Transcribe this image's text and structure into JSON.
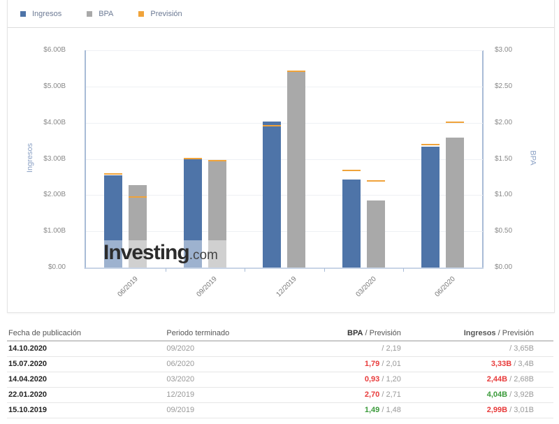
{
  "legend": {
    "items": [
      {
        "label": "Ingresos",
        "color": "#4e74a8"
      },
      {
        "label": "BPA",
        "color": "#a9a9a9"
      },
      {
        "label": "Previsión",
        "color": "#f0a33a"
      }
    ]
  },
  "chart_data": {
    "type": "bar",
    "title": "",
    "categories": [
      "06/2019",
      "09/2019",
      "12/2019",
      "03/2020",
      "06/2020"
    ],
    "series": [
      {
        "name": "Ingresos",
        "axis": "left",
        "unit": "B USD",
        "color": "#4e74a8",
        "values": [
          2.55,
          2.99,
          4.04,
          2.44,
          3.33
        ],
        "forecast": [
          2.58,
          3.01,
          3.92,
          2.68,
          3.4
        ]
      },
      {
        "name": "BPA",
        "axis": "right",
        "unit": "USD",
        "color": "#a9a9a9",
        "values": [
          1.14,
          1.49,
          2.7,
          0.93,
          1.79
        ],
        "forecast": [
          0.97,
          1.48,
          2.71,
          1.2,
          2.01
        ]
      }
    ],
    "forecast_color": "#f0a33a",
    "ylabel": "Ingresos",
    "ylabel_right": "BPA",
    "ylim": [
      0,
      6
    ],
    "ylim_right": [
      0,
      3
    ],
    "yticks_left": [
      "$0.00",
      "$1.00B",
      "$2.00B",
      "$3.00B",
      "$4.00B",
      "$5.00B",
      "$6.00B"
    ],
    "yticks_right": [
      "$0.00",
      "$0.50",
      "$1.00",
      "$1.50",
      "$2.00",
      "$2.50",
      "$3.00"
    ],
    "grid": true,
    "legend_position": "top-left"
  },
  "watermark": {
    "main": "Investing",
    "domain": ".com"
  },
  "table": {
    "headers": {
      "date": "Fecha de publicación",
      "period": "Periodo terminado",
      "eps": "BPA",
      "eps_fc": "Previsión",
      "rev": "Ingresos",
      "rev_fc": "Previsión",
      "sep": "/"
    },
    "rows": [
      {
        "date": "14.10.2020",
        "period": "09/2020",
        "eps": "",
        "eps_class": "",
        "eps_fc": "2,19",
        "rev": "",
        "rev_class": "",
        "rev_fc": "3,65B"
      },
      {
        "date": "15.07.2020",
        "period": "06/2020",
        "eps": "1,79",
        "eps_class": "neg",
        "eps_fc": "2,01",
        "rev": "3,33B",
        "rev_class": "neg",
        "rev_fc": "3,4B"
      },
      {
        "date": "14.04.2020",
        "period": "03/2020",
        "eps": "0,93",
        "eps_class": "neg",
        "eps_fc": "1,20",
        "rev": "2,44B",
        "rev_class": "neg",
        "rev_fc": "2,68B"
      },
      {
        "date": "22.01.2020",
        "period": "12/2019",
        "eps": "2,70",
        "eps_class": "neg",
        "eps_fc": "2,71",
        "rev": "4,04B",
        "rev_class": "pos",
        "rev_fc": "3,92B"
      },
      {
        "date": "15.10.2019",
        "period": "09/2019",
        "eps": "1,49",
        "eps_class": "pos",
        "eps_fc": "1,48",
        "rev": "2,99B",
        "rev_class": "neg",
        "rev_fc": "3,01B"
      }
    ]
  }
}
